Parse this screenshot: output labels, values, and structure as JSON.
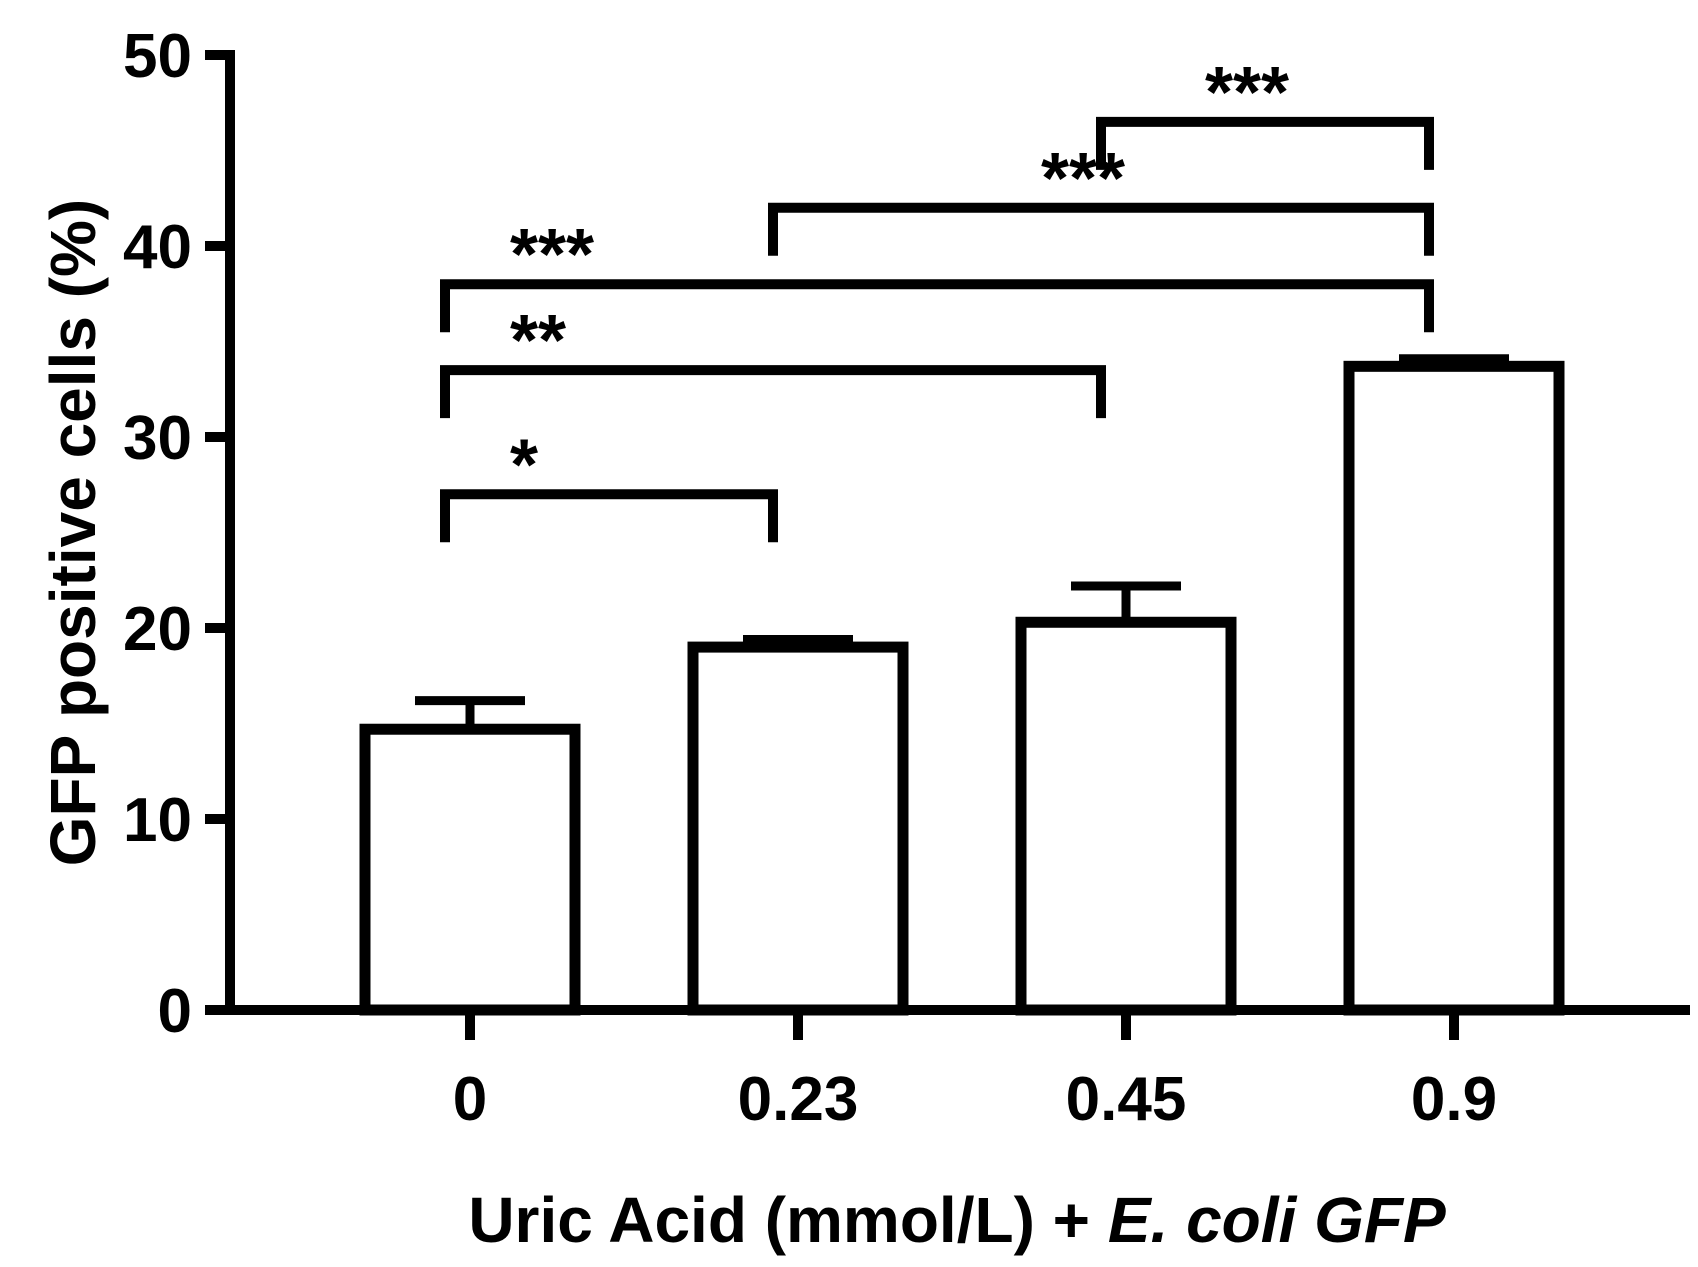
{
  "chart_data": {
    "type": "bar",
    "categories": [
      "0",
      "0.23",
      "0.45",
      "0.9"
    ],
    "values": [
      14.7,
      19.0,
      20.3,
      33.7
    ],
    "error": [
      1.5,
      0.4,
      1.9,
      0.4
    ],
    "ylabel": "GFP positive cells (%)",
    "xlabel": {
      "main": "Uric Acid (mmol/L) + ",
      "italic": "E. coli GFP"
    },
    "ylim": [
      0,
      50
    ],
    "yticks": [
      "0",
      "10",
      "20",
      "30",
      "40",
      "50"
    ],
    "grid": false,
    "bar_fill": "#ffffff",
    "bar_stroke": "#000000",
    "significance": [
      {
        "from": 0,
        "to": 1,
        "level": 27,
        "label": "*"
      },
      {
        "from": 0,
        "to": 2,
        "level": 33.5,
        "label": "**"
      },
      {
        "from": 0,
        "to": 3,
        "level": 38,
        "label": "***"
      },
      {
        "from": 1,
        "to": 3,
        "level": 42,
        "label": "***"
      },
      {
        "from": 2,
        "to": 3,
        "level": 46.5,
        "label": "***"
      }
    ]
  }
}
